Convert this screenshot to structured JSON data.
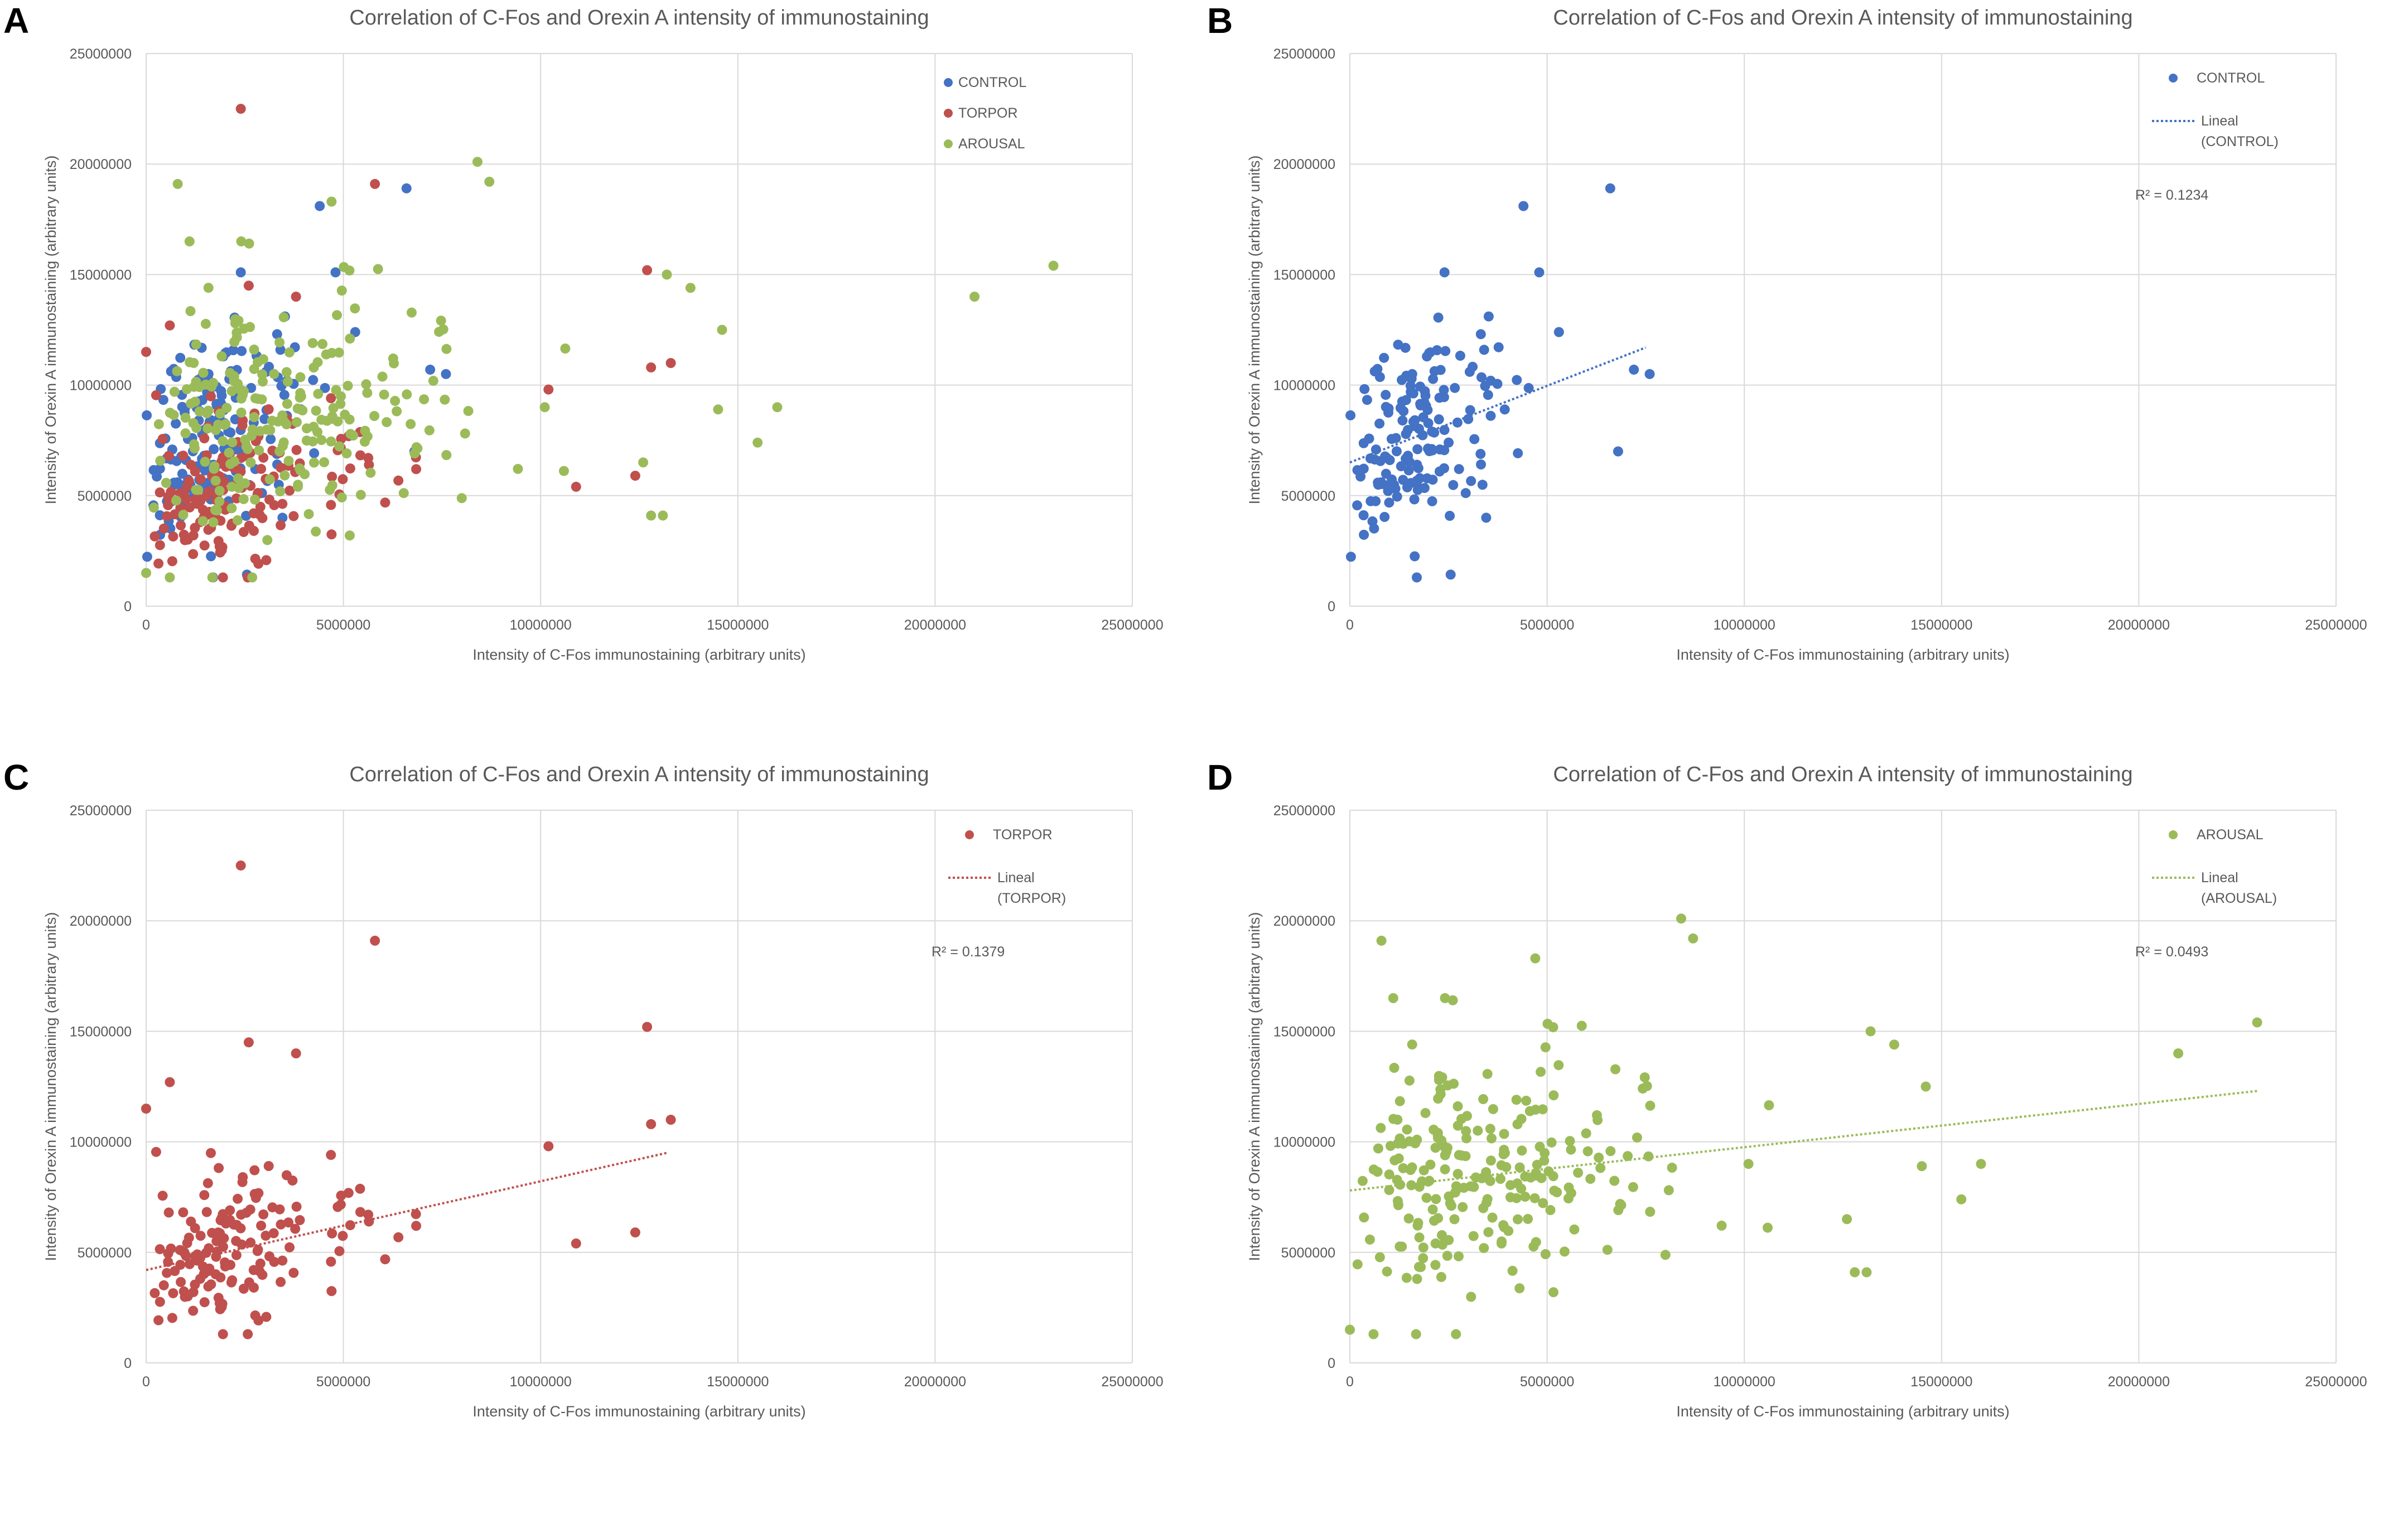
{
  "panels": [
    {
      "letter": "A"
    },
    {
      "letter": "B"
    },
    {
      "letter": "C"
    },
    {
      "letter": "D"
    }
  ],
  "colors": {
    "control": "#4472C4",
    "torpor": "#C0504D",
    "arousal": "#9BBB59",
    "grid": "#D9D9D9",
    "text": "#595959"
  },
  "chart_data": [
    {
      "panel": "A",
      "type": "scatter",
      "title": "Correlation of C-Fos and Orexin A intensity of immunostaining",
      "xlabel": "Intensity of C-Fos immunostaining (arbitrary units)",
      "ylabel": "Intensity of Orexin A immunostaining (arbitrary units)",
      "xlim": [
        0,
        25000000
      ],
      "ylim": [
        0,
        25000000
      ],
      "xticks": [
        0,
        5000000,
        10000000,
        15000000,
        20000000,
        25000000
      ],
      "yticks": [
        0,
        5000000,
        10000000,
        15000000,
        20000000,
        25000000
      ],
      "legend_position": "top-right",
      "series": [
        {
          "name": "CONTROL",
          "key": "control",
          "seed": 11,
          "n": 160,
          "mode": "cluster",
          "cx": 2200000,
          "sx": 1500000,
          "xmax": 7600000,
          "a": 6500000,
          "b": 0.7,
          "sy": 2200000,
          "extra": [
            [
              6600000,
              18900000
            ],
            [
              4400000,
              18100000
            ],
            [
              2400000,
              15100000
            ],
            [
              4800000,
              15100000
            ],
            [
              6800000,
              7000000
            ],
            [
              7200000,
              10700000
            ],
            [
              7600000,
              10500000
            ],
            [
              5300000,
              12400000
            ]
          ]
        },
        {
          "name": "TORPOR",
          "key": "torpor",
          "seed": 23,
          "n": 150,
          "mode": "cluster",
          "cx": 2800000,
          "sx": 2200000,
          "xmax": 13500000,
          "a": 4200000,
          "b": 0.4,
          "sy": 1600000,
          "extra": [
            [
              2400000,
              22500000
            ],
            [
              5800000,
              19100000
            ],
            [
              12700000,
              15200000
            ],
            [
              2600000,
              14500000
            ],
            [
              3800000,
              14000000
            ],
            [
              13300000,
              11000000
            ],
            [
              12800000,
              10800000
            ],
            [
              0,
              11500000
            ],
            [
              10200000,
              9800000
            ],
            [
              10900000,
              5400000
            ],
            [
              12400000,
              5900000
            ],
            [
              600000,
              12700000
            ]
          ]
        },
        {
          "name": "AROUSAL",
          "key": "arousal",
          "seed": 37,
          "n": 230,
          "mode": "cluster",
          "cx": 4000000,
          "sx": 3400000,
          "xmax": 16000000,
          "a": 7800000,
          "b": 0.19,
          "sy": 2700000,
          "extra": [
            [
              23000000,
              15400000
            ],
            [
              21000000,
              14000000
            ],
            [
              8400000,
              20100000
            ],
            [
              8700000,
              19200000
            ],
            [
              800000,
              19100000
            ],
            [
              4700000,
              18300000
            ],
            [
              16000000,
              9000000
            ],
            [
              15500000,
              7400000
            ],
            [
              14600000,
              12500000
            ],
            [
              14500000,
              8900000
            ],
            [
              13800000,
              14400000
            ],
            [
              13200000,
              15000000
            ],
            [
              13100000,
              4100000
            ],
            [
              12800000,
              4100000
            ],
            [
              12600000,
              6500000
            ],
            [
              600000,
              1300000
            ],
            [
              0,
              1500000
            ],
            [
              1100000,
              16500000
            ]
          ]
        }
      ]
    },
    {
      "panel": "B",
      "type": "scatter",
      "title": "Correlation of C-Fos and Orexin A intensity of immunostaining",
      "xlabel": "Intensity of C-Fos immunostaining (arbitrary units)",
      "ylabel": "Intensity of Orexin A immunostaining (arbitrary units)",
      "xlim": [
        0,
        25000000
      ],
      "ylim": [
        0,
        25000000
      ],
      "xticks": [
        0,
        5000000,
        10000000,
        15000000,
        20000000,
        25000000
      ],
      "yticks": [
        0,
        5000000,
        10000000,
        15000000,
        20000000,
        25000000
      ],
      "legend_position": "top-right",
      "series": [
        {
          "name": "CONTROL",
          "key": "control",
          "seed": 11,
          "n": 160,
          "mode": "cluster",
          "cx": 2200000,
          "sx": 1500000,
          "xmax": 7600000,
          "a": 6500000,
          "b": 0.7,
          "sy": 2200000,
          "extra": [
            [
              6600000,
              18900000
            ],
            [
              4400000,
              18100000
            ],
            [
              2400000,
              15100000
            ],
            [
              4800000,
              15100000
            ],
            [
              6800000,
              7000000
            ],
            [
              7200000,
              10700000
            ],
            [
              7600000,
              10500000
            ],
            [
              5300000,
              12400000
            ]
          ]
        }
      ],
      "trendline": {
        "name": "Lineal (CONTROL)",
        "key": "control",
        "x": [
          0,
          7500000
        ],
        "y": [
          6500000,
          11700000
        ],
        "r2": "R² = 0.1234"
      }
    },
    {
      "panel": "C",
      "type": "scatter",
      "title": "Correlation of C-Fos and Orexin A intensity of immunostaining",
      "xlabel": "Intensity of C-Fos immunostaining (arbitrary units)",
      "ylabel": "Intensity of Orexin A immunostaining (arbitrary units)",
      "xlim": [
        0,
        25000000
      ],
      "ylim": [
        0,
        25000000
      ],
      "xticks": [
        0,
        5000000,
        10000000,
        15000000,
        20000000,
        25000000
      ],
      "yticks": [
        0,
        5000000,
        10000000,
        15000000,
        20000000,
        25000000
      ],
      "legend_position": "top-right",
      "series": [
        {
          "name": "TORPOR",
          "key": "torpor",
          "seed": 23,
          "n": 150,
          "mode": "cluster",
          "cx": 2800000,
          "sx": 2200000,
          "xmax": 13500000,
          "a": 4200000,
          "b": 0.4,
          "sy": 1600000,
          "extra": [
            [
              2400000,
              22500000
            ],
            [
              5800000,
              19100000
            ],
            [
              12700000,
              15200000
            ],
            [
              2600000,
              14500000
            ],
            [
              3800000,
              14000000
            ],
            [
              13300000,
              11000000
            ],
            [
              12800000,
              10800000
            ],
            [
              0,
              11500000
            ],
            [
              10200000,
              9800000
            ],
            [
              10900000,
              5400000
            ],
            [
              12400000,
              5900000
            ],
            [
              600000,
              12700000
            ]
          ]
        }
      ],
      "trendline": {
        "name": "Lineal (TORPOR)",
        "key": "torpor",
        "x": [
          0,
          13200000
        ],
        "y": [
          4200000,
          9500000
        ],
        "r2": "R² = 0.1379"
      }
    },
    {
      "panel": "D",
      "type": "scatter",
      "title": "Correlation of C-Fos and Orexin A intensity of immunostaining",
      "xlabel": "Intensity of C-Fos immunostaining (arbitrary units)",
      "ylabel": "Intensity of Orexin A immunostaining (arbitrary units)",
      "xlim": [
        0,
        25000000
      ],
      "ylim": [
        0,
        25000000
      ],
      "xticks": [
        0,
        5000000,
        10000000,
        15000000,
        20000000,
        25000000
      ],
      "yticks": [
        0,
        5000000,
        10000000,
        15000000,
        20000000,
        25000000
      ],
      "legend_position": "top-right",
      "series": [
        {
          "name": "AROUSAL",
          "key": "arousal",
          "seed": 37,
          "n": 230,
          "mode": "cluster",
          "cx": 4000000,
          "sx": 3400000,
          "xmax": 16000000,
          "a": 7800000,
          "b": 0.19,
          "sy": 2700000,
          "extra": [
            [
              23000000,
              15400000
            ],
            [
              21000000,
              14000000
            ],
            [
              8400000,
              20100000
            ],
            [
              8700000,
              19200000
            ],
            [
              800000,
              19100000
            ],
            [
              4700000,
              18300000
            ],
            [
              16000000,
              9000000
            ],
            [
              15500000,
              7400000
            ],
            [
              14600000,
              12500000
            ],
            [
              14500000,
              8900000
            ],
            [
              13800000,
              14400000
            ],
            [
              13200000,
              15000000
            ],
            [
              13100000,
              4100000
            ],
            [
              12800000,
              4100000
            ],
            [
              12600000,
              6500000
            ],
            [
              600000,
              1300000
            ],
            [
              0,
              1500000
            ],
            [
              1100000,
              16500000
            ]
          ]
        }
      ],
      "trendline": {
        "name": "Lineal (AROUSAL)",
        "key": "arousal",
        "x": [
          0,
          23000000
        ],
        "y": [
          7800000,
          12300000
        ],
        "r2": "R² = 0.0493"
      }
    }
  ]
}
